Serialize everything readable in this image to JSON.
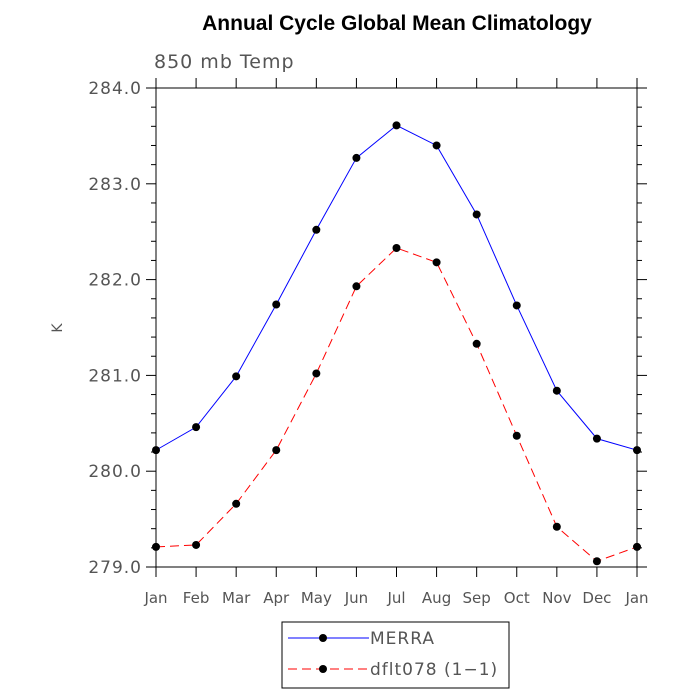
{
  "chart_data": {
    "type": "line",
    "title": "Annual Cycle Global Mean Climatology",
    "subtitle": "850 mb Temp",
    "xlabel": "",
    "ylabel": "K",
    "categories": [
      "Jan",
      "Feb",
      "Mar",
      "Apr",
      "May",
      "Jun",
      "Jul",
      "Aug",
      "Sep",
      "Oct",
      "Nov",
      "Dec",
      "Jan"
    ],
    "ylim": [
      279.0,
      284.0
    ],
    "yticks": [
      "279.0",
      "280.0",
      "281.0",
      "282.0",
      "283.0",
      "284.0"
    ],
    "grid": false,
    "legend_position": "bottom",
    "series": [
      {
        "name": "MERRA",
        "color": "#0000ff",
        "dash": "solid",
        "values": [
          280.22,
          280.46,
          280.99,
          281.74,
          282.52,
          283.27,
          283.61,
          283.4,
          282.68,
          281.73,
          280.84,
          280.34,
          280.22
        ]
      },
      {
        "name": "dflt078 (1−1)",
        "color": "#ff0000",
        "dash": "dashed",
        "values": [
          279.21,
          279.23,
          279.66,
          280.22,
          281.02,
          281.93,
          282.33,
          282.18,
          281.33,
          280.37,
          279.42,
          279.06,
          279.21
        ]
      }
    ]
  }
}
